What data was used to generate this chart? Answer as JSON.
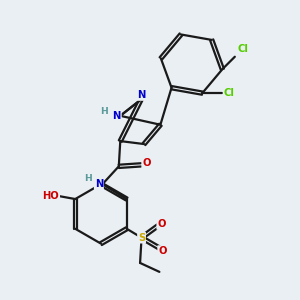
{
  "bg_color": "#eaeff3",
  "bond_color": "#1a1a1a",
  "bond_width": 1.6,
  "dbo": 0.055,
  "atom_colors": {
    "N": "#0000cc",
    "O": "#cc0000",
    "S": "#ccaa00",
    "Cl": "#55cc00",
    "H": "#5a9a9a"
  },
  "font_size": 7.2,
  "fig_size": [
    3.0,
    3.0
  ],
  "dpi": 100,
  "xlim": [
    0,
    10
  ],
  "ylim": [
    0,
    10
  ]
}
